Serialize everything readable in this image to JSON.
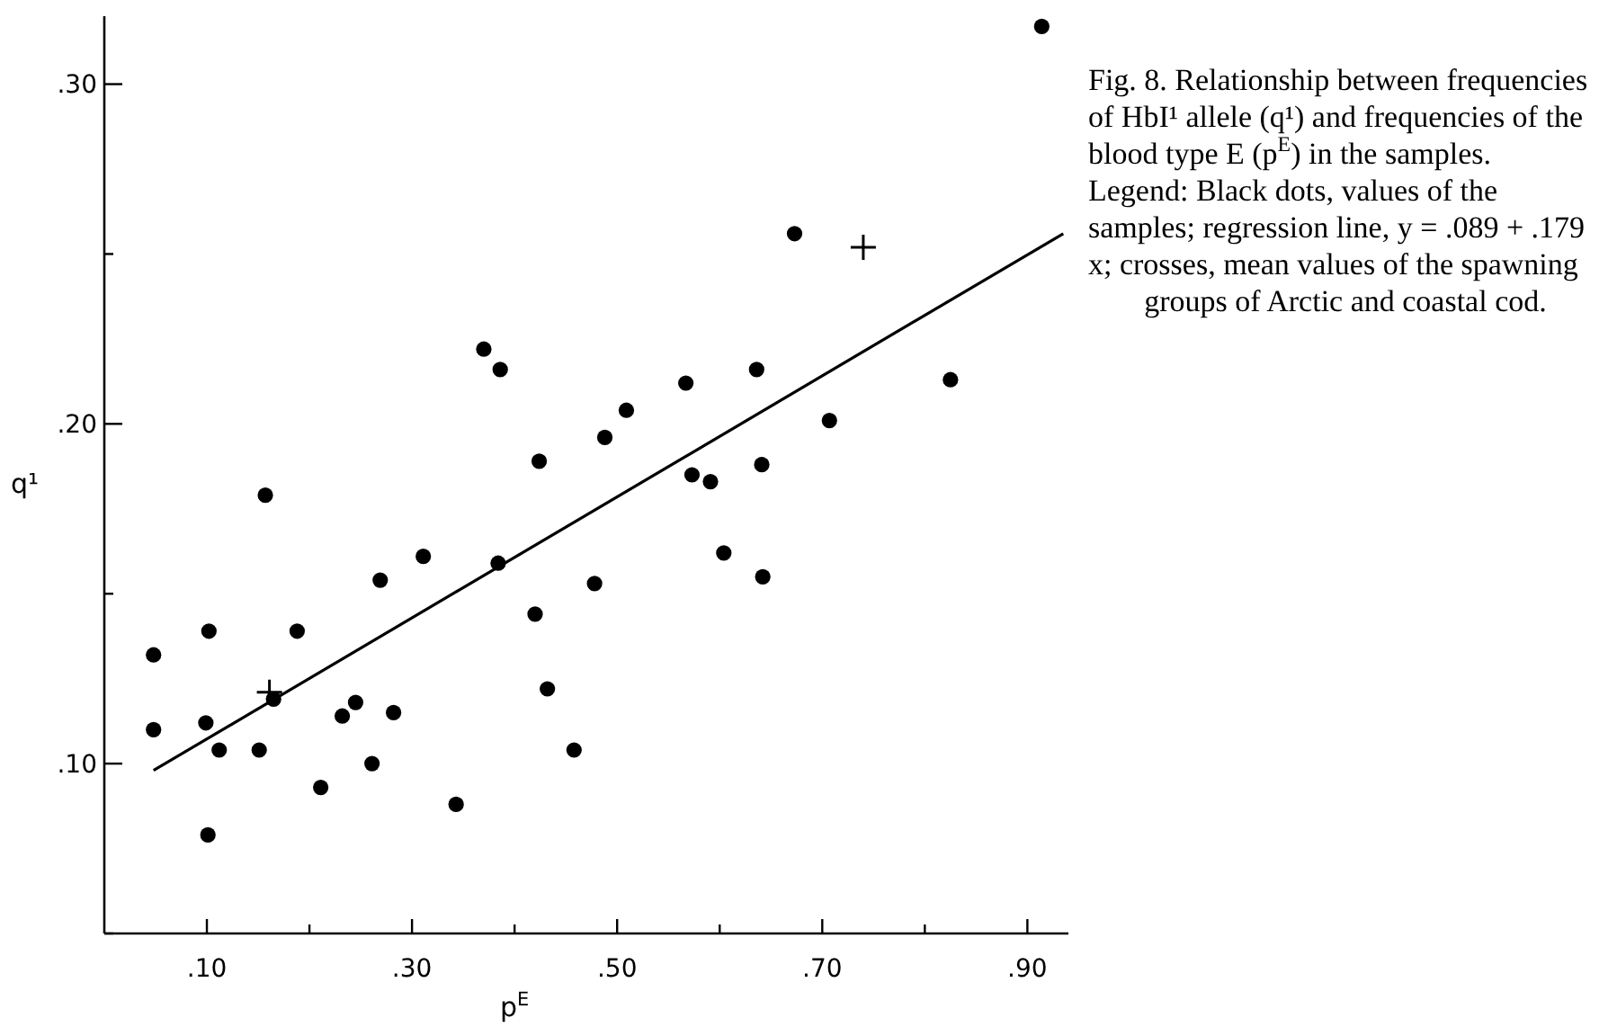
{
  "chart_data": {
    "type": "scatter",
    "xlabel": "p$^{E}$",
    "ylabel": "q¹",
    "xlim": [
      0,
      0.94
    ],
    "ylim": [
      0.05,
      0.32
    ],
    "xticks": [
      {
        "value": 0.1,
        "label": ".10"
      },
      {
        "value": 0.2,
        "label": null
      },
      {
        "value": 0.3,
        "label": ".30"
      },
      {
        "value": 0.4,
        "label": null
      },
      {
        "value": 0.5,
        "label": ".50"
      },
      {
        "value": 0.6,
        "label": null
      },
      {
        "value": 0.7,
        "label": ".70"
      },
      {
        "value": 0.8,
        "label": null
      },
      {
        "value": 0.9,
        "label": ".90"
      }
    ],
    "yticks": [
      {
        "value": 0.05,
        "label": null
      },
      {
        "value": 0.1,
        "label": ".10"
      },
      {
        "value": 0.15,
        "label": null
      },
      {
        "value": 0.2,
        "label": ".20"
      },
      {
        "value": 0.25,
        "label": null
      },
      {
        "value": 0.3,
        "label": ".30"
      }
    ],
    "grid": false,
    "series": [
      {
        "marker": "circle",
        "color": "#000000",
        "x": [
          0.37,
          0.386,
          0.424,
          0.488,
          0.509,
          0.567,
          0.573,
          0.591,
          0.636,
          0.641,
          0.673,
          0.157,
          0.914,
          0.825,
          0.707,
          0.048,
          0.102,
          0.188,
          0.269,
          0.311,
          0.384,
          0.478,
          0.604,
          0.642,
          0.42,
          0.432,
          0.458,
          0.048,
          0.099,
          0.112,
          0.151,
          0.165,
          0.232,
          0.245,
          0.282,
          0.261,
          0.211,
          0.343,
          0.101
        ],
        "values": [
          0.222,
          0.216,
          0.189,
          0.196,
          0.204,
          0.212,
          0.185,
          0.183,
          0.216,
          0.188,
          0.256,
          0.179,
          0.317,
          0.213,
          0.201,
          0.132,
          0.139,
          0.139,
          0.154,
          0.161,
          0.159,
          0.153,
          0.162,
          0.155,
          0.144,
          0.122,
          0.104,
          0.11,
          0.112,
          0.104,
          0.104,
          0.119,
          0.114,
          0.118,
          0.115,
          0.1,
          0.093,
          0.088,
          0.079
        ]
      },
      {
        "type": "line",
        "marker": "none",
        "line_style": "solid",
        "color": "#000000",
        "x": [
          0.048,
          0.935
        ],
        "values": [
          0.098,
          0.256
        ]
      },
      {
        "marker": "cross",
        "color": "#000000",
        "x": [
          0.161,
          0.74
        ],
        "values": [
          0.121,
          0.252
        ]
      }
    ],
    "annotations": [
      "Fig. 8. Relationship between frequencies of HbI¹ allele (q¹) and frequencies of the blood type E (p$^{E}$) in the samples. Legend: Black dots, values of the samples; regression line, y = .089 + .179 x; crosses, mean values of the spawning groups of Arctic and coastal cod."
    ]
  }
}
